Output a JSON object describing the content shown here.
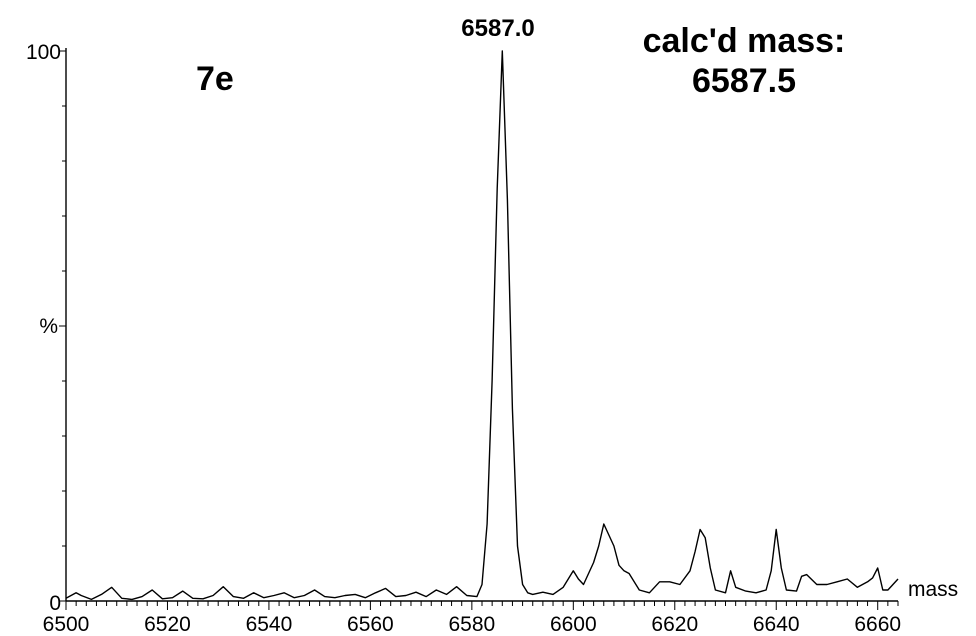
{
  "chart_data": {
    "type": "line",
    "compound_label": "7e",
    "peak_label": "6587.0",
    "calc_mass_label": "calc'd mass:",
    "calc_mass_value": "6587.5",
    "xlabel": "mass",
    "ylabel": "%",
    "y_ticks": [
      "0",
      "100"
    ],
    "x_ticks": [
      "6500",
      "6520",
      "6540",
      "6560",
      "6580",
      "6600",
      "6620",
      "6640",
      "6660"
    ],
    "xlim": [
      6500,
      6664
    ],
    "ylim": [
      0,
      100
    ],
    "line_color": "#000000",
    "x": [
      6500,
      6502,
      6503,
      6505,
      6507,
      6509,
      6511,
      6513,
      6515,
      6517,
      6519,
      6521,
      6523,
      6525,
      6527,
      6529,
      6531,
      6533,
      6535,
      6537,
      6539,
      6541,
      6543,
      6545,
      6547,
      6549,
      6551,
      6553,
      6555,
      6557,
      6559,
      6561,
      6563,
      6565,
      6567,
      6569,
      6571,
      6573,
      6575,
      6577,
      6579,
      6581,
      6582,
      6583,
      6584,
      6585,
      6586,
      6587,
      6588,
      6589,
      6590,
      6591,
      6592,
      6594,
      6596,
      6598,
      6600,
      6601,
      6602,
      6604,
      6605,
      6606,
      6608,
      6609,
      6610,
      6611,
      6613,
      6615,
      6617,
      6619,
      6621,
      6623,
      6624,
      6625,
      6626,
      6627,
      6628,
      6630,
      6631,
      6632,
      6634,
      6636,
      6638,
      6639,
      6640,
      6641,
      6642,
      6644,
      6645,
      6646,
      6648,
      6650,
      6652,
      6654,
      6656,
      6658,
      6659,
      6660,
      6661,
      6662,
      6664
    ],
    "y": [
      0.5,
      1.5,
      1.0,
      0.3,
      1.2,
      2.5,
      0.5,
      0.3,
      0.8,
      2.0,
      0.4,
      0.6,
      1.8,
      0.5,
      0.4,
      1.0,
      2.6,
      0.8,
      0.5,
      1.5,
      0.6,
      1.0,
      1.5,
      0.6,
      1.0,
      2.0,
      0.8,
      0.6,
      1.0,
      1.2,
      0.6,
      1.5,
      2.3,
      0.8,
      1.0,
      1.6,
      0.8,
      2.0,
      1.2,
      2.6,
      1.0,
      0.8,
      3.0,
      14.0,
      40.0,
      75.0,
      100.0,
      73.0,
      35.0,
      10.0,
      3.0,
      1.5,
      1.2,
      1.6,
      1.2,
      2.5,
      5.5,
      4.0,
      3.0,
      7.0,
      10.0,
      14.0,
      10.0,
      6.5,
      5.5,
      5.0,
      2.0,
      1.5,
      3.5,
      3.5,
      3.0,
      5.5,
      9.0,
      13.0,
      11.5,
      6.0,
      2.0,
      1.5,
      5.5,
      2.5,
      1.8,
      1.5,
      2.0,
      5.5,
      13.0,
      6.0,
      2.0,
      1.8,
      4.5,
      4.8,
      3.0,
      3.0,
      3.5,
      4.0,
      2.5,
      3.5,
      4.2,
      6.0,
      2.0,
      2.0,
      4.0
    ]
  }
}
